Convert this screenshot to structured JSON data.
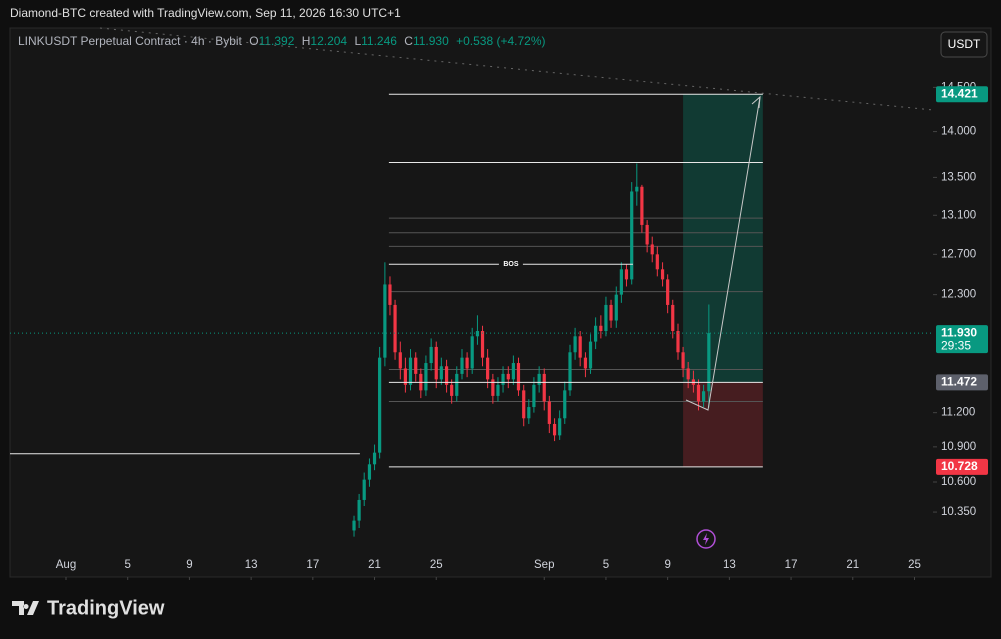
{
  "header": {
    "credit": "Diamond-BTC created with TradingView.com, Sep 11, 2026 16:30 UTC+1",
    "symbol_line": "LINKUSDT Perpetual Contract · 4h · Bybit",
    "o": "O",
    "h": "H",
    "l": "L",
    "c": "C",
    "change": "+0.538 (+4.72%)",
    "currency_button": "USDT"
  },
  "footer": {
    "logo": "TradingView"
  },
  "chart_data": {
    "type": "candlestick",
    "log_scale": true,
    "up_color": "#089981",
    "down_color": "#f23645",
    "xlim": [
      -3.63,
      56.2
    ],
    "ylim": [
      9.83,
      15.2
    ],
    "xticks": [
      {
        "value": 0,
        "label": "Aug"
      },
      {
        "value": 4,
        "label": "5"
      },
      {
        "value": 8,
        "label": "9"
      },
      {
        "value": 12,
        "label": "13"
      },
      {
        "value": 16,
        "label": "17"
      },
      {
        "value": 20,
        "label": "21"
      },
      {
        "value": 24,
        "label": "25"
      },
      {
        "value": 31,
        "label": "Sep"
      },
      {
        "value": 35,
        "label": "5"
      },
      {
        "value": 39,
        "label": "9"
      },
      {
        "value": 43,
        "label": "13"
      },
      {
        "value": 47,
        "label": "17"
      },
      {
        "value": 51,
        "label": "21"
      },
      {
        "value": 55,
        "label": "25"
      }
    ],
    "yticks": [
      {
        "value": 14.5,
        "label": "14.500"
      },
      {
        "value": 14,
        "label": "14.000"
      },
      {
        "value": 13.5,
        "label": "13.500"
      },
      {
        "value": 13.1,
        "label": "13.100"
      },
      {
        "value": 12.7,
        "label": "12.700"
      },
      {
        "value": 12.3,
        "label": "12.300"
      },
      {
        "value": 11.2,
        "label": "11.200"
      },
      {
        "value": 10.9,
        "label": "10.900"
      },
      {
        "value": 10.6,
        "label": "10.600"
      },
      {
        "value": 10.35,
        "label": "10.350"
      }
    ],
    "x": [
      18.67,
      19,
      19.33,
      19.67,
      20,
      20.33,
      20.67,
      21,
      21.33,
      21.67,
      22,
      22.33,
      22.67,
      23,
      23.33,
      23.67,
      24,
      24.33,
      24.67,
      25,
      25.33,
      25.67,
      26,
      26.33,
      26.67,
      27,
      27.33,
      27.67,
      28,
      28.33,
      28.67,
      29,
      29.33,
      29.67,
      30,
      30.33,
      30.67,
      31,
      31.33,
      31.67,
      32,
      32.33,
      32.67,
      33,
      33.33,
      33.67,
      34,
      34.33,
      34.67,
      35,
      35.33,
      35.67,
      36,
      36.33,
      36.67,
      37,
      37.33,
      37.67,
      38,
      38.33,
      38.67,
      39,
      39.33,
      39.67,
      40,
      40.33,
      40.67,
      41,
      41.33,
      41.67
    ],
    "open": [
      10.2,
      10.28,
      10.45,
      10.62,
      10.75,
      10.85,
      11.7,
      12.4,
      12.2,
      11.75,
      11.6,
      11.45,
      11.7,
      11.55,
      11.4,
      11.65,
      11.8,
      11.5,
      11.62,
      11.45,
      11.35,
      11.55,
      11.7,
      11.6,
      11.9,
      11.95,
      11.7,
      11.5,
      11.35,
      11.45,
      11.55,
      11.5,
      11.65,
      11.4,
      11.15,
      11.25,
      11.45,
      11.55,
      11.3,
      11.1,
      11,
      11.15,
      11.4,
      11.75,
      11.9,
      11.7,
      11.6,
      11.85,
      12,
      11.95,
      12.2,
      12.05,
      12.3,
      12.55,
      12.45,
      13.35,
      13.4,
      13,
      12.8,
      12.7,
      12.55,
      12.45,
      12.2,
      11.95,
      11.75,
      11.6,
      11.5,
      11.45,
      11.3,
      11.392
    ],
    "high": [
      10.32,
      10.5,
      10.68,
      10.8,
      10.92,
      11.8,
      12.62,
      12.48,
      12.25,
      11.85,
      11.7,
      11.78,
      11.75,
      11.6,
      11.72,
      11.88,
      11.85,
      11.7,
      11.68,
      11.5,
      11.62,
      11.78,
      11.75,
      11.98,
      12.1,
      12,
      11.78,
      11.55,
      11.52,
      11.62,
      11.62,
      11.72,
      11.7,
      11.45,
      11.32,
      11.52,
      11.62,
      11.6,
      11.35,
      11.15,
      11.22,
      11.48,
      11.82,
      11.98,
      11.95,
      11.75,
      11.92,
      12.08,
      12.1,
      12.28,
      12.25,
      12.38,
      12.62,
      12.6,
      13.45,
      13.65,
      13.42,
      13.05,
      12.88,
      12.78,
      12.62,
      12.5,
      12.25,
      12.02,
      11.8,
      11.66,
      11.58,
      11.5,
      11.45,
      12.204
    ],
    "low": [
      10.15,
      10.22,
      10.4,
      10.56,
      10.7,
      10.8,
      11.62,
      12.1,
      11.68,
      11.5,
      11.38,
      11.4,
      11.48,
      11.33,
      11.35,
      11.58,
      11.42,
      11.45,
      11.38,
      11.28,
      11.3,
      11.5,
      11.52,
      11.55,
      11.82,
      11.62,
      11.42,
      11.28,
      11.3,
      11.38,
      11.42,
      11.45,
      11.35,
      11.08,
      11.1,
      11.2,
      11.38,
      11.22,
      11.02,
      10.95,
      10.96,
      11.1,
      11.35,
      11.68,
      11.62,
      11.52,
      11.55,
      11.78,
      11.88,
      11.9,
      11.98,
      11.98,
      12.22,
      12.38,
      12.4,
      13.2,
      12.92,
      12.72,
      12.62,
      12.48,
      12.38,
      12.12,
      11.88,
      11.68,
      11.52,
      11.42,
      11.38,
      11.22,
      11.25,
      11.246
    ],
    "close": [
      10.28,
      10.45,
      10.62,
      10.75,
      10.85,
      11.7,
      12.4,
      12.2,
      11.75,
      11.6,
      11.45,
      11.7,
      11.55,
      11.4,
      11.65,
      11.8,
      11.5,
      11.62,
      11.45,
      11.35,
      11.55,
      11.7,
      11.6,
      11.9,
      11.95,
      11.7,
      11.5,
      11.35,
      11.45,
      11.55,
      11.5,
      11.65,
      11.4,
      11.15,
      11.25,
      11.45,
      11.55,
      11.3,
      11.1,
      11,
      11.15,
      11.4,
      11.75,
      11.9,
      11.7,
      11.6,
      11.85,
      12,
      11.95,
      12.2,
      12.05,
      12.3,
      12.55,
      12.45,
      13.35,
      13.4,
      13,
      12.8,
      12.7,
      12.55,
      12.45,
      12.2,
      11.95,
      11.75,
      11.6,
      11.5,
      11.45,
      11.3,
      11.392,
      11.93
    ],
    "last_price": {
      "value": 11.93,
      "label": "11.930"
    },
    "countdown": "29:35",
    "position": {
      "target": 14.421,
      "entry": 11.472,
      "stop": 10.728,
      "from": 40,
      "to": 45.17
    },
    "levels": [
      {
        "price": 14.421,
        "from": 20.93,
        "to": 45.17
      },
      {
        "price": 13.66,
        "from": 20.93,
        "to": 45.17
      },
      {
        "price": 12.6,
        "from": 20.93,
        "to": 36.75,
        "label": "BOS"
      },
      {
        "price": 11.472,
        "from": 20.93,
        "to": 45.17
      },
      {
        "price": 10.728,
        "from": 20.93,
        "to": 45.17
      },
      {
        "price": 10.84,
        "from": -3.63,
        "to": 19.05
      }
    ],
    "minor_levels": [
      13.07,
      12.92,
      12.78,
      12.33,
      11.59,
      11.3
    ]
  }
}
